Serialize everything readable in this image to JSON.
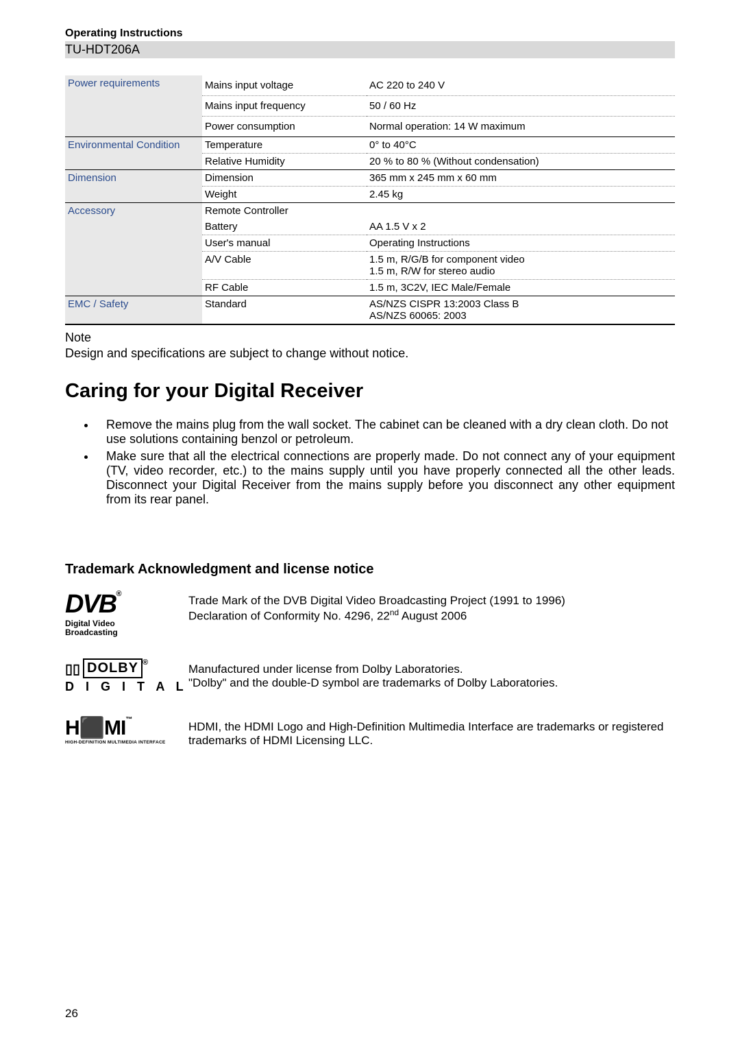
{
  "header": {
    "title": "Operating Instructions",
    "model": "TU-HDT206A"
  },
  "specs": [
    {
      "category": "Power requirements",
      "rows": [
        {
          "param": "Mains input voltage",
          "value": "AC 220 to 240 V"
        },
        {
          "param": "Mains input frequency",
          "value": "50 / 60 Hz"
        },
        {
          "param": "Power consumption",
          "value": "Normal operation: 14 W maximum"
        }
      ]
    },
    {
      "category": "Environmental Condition",
      "rows": [
        {
          "param": "Temperature",
          "value": "0° to 40°C"
        },
        {
          "param": "Relative Humidity",
          "value": "20 % to 80 % (Without condensation)"
        }
      ]
    },
    {
      "category": "Dimension",
      "rows": [
        {
          "param": "Dimension",
          "value": "365 mm x 245 mm x 60 mm"
        },
        {
          "param": "Weight",
          "value": "2.45  kg"
        }
      ]
    },
    {
      "category": "Accessory",
      "rows": [
        {
          "param": "Remote Controller",
          "value": ""
        },
        {
          "param": "Battery",
          "value": "AA 1.5  V x 2"
        },
        {
          "param": "User's manual",
          "value": "Operating Instructions"
        },
        {
          "param": "A/V Cable",
          "value": "1.5 m, R/G/B for component video\n1.5 m, R/W for stereo audio"
        },
        {
          "param": "RF Cable",
          "value": "1.5 m, 3C2V, IEC Male/Female"
        }
      ]
    },
    {
      "category": "EMC / Safety",
      "rows": [
        {
          "param": "Standard",
          "value": "AS/NZS CISPR 13:2003 Class B\nAS/NZS 60065: 2003"
        }
      ]
    }
  ],
  "note": {
    "label": "Note",
    "text": "Design and specifications are subject to change without notice."
  },
  "section_title": "Caring for your Digital Receiver",
  "bullets": [
    "Remove the mains plug from the wall socket. The cabinet can be cleaned with a dry clean cloth. Do not use solutions containing benzol or petroleum.",
    "Make sure that all the electrical connections are properly made. Do not connect any of your equipment (TV, video recorder, etc.) to the mains supply until you have properly connected all the other leads. Disconnect your Digital Receiver from the mains supply before you disconnect any other equipment from its rear panel."
  ],
  "subsection_title": "Trademark Acknowledgment and license notice",
  "trademarks": {
    "dvb": {
      "logo_line1": "Digital Video",
      "logo_line2": "Broadcasting",
      "text_line1": "Trade Mark of the DVB Digital Video Broadcasting Project (1991 to 1996)",
      "text_line2_pre": "Declaration of Conformity No. 4296, 22",
      "text_line2_sup": "nd",
      "text_line2_post": " August 2006"
    },
    "dolby": {
      "logo_text": "DOLBY",
      "logo_sub": "D I G I T A L",
      "text_line1": "Manufactured under license from Dolby Laboratories.",
      "text_line2": "\"Dolby\" and the double-D symbol are trademarks of Dolby Laboratories."
    },
    "hdmi": {
      "logo_text": "HDMI",
      "logo_sub": "HIGH-DEFINITION MULTIMEDIA INTERFACE",
      "text": "HDMI, the HDMI Logo and High-Definition Multimedia Interface are trademarks or registered trademarks of HDMI Licensing LLC."
    }
  },
  "page_number": "26",
  "colors": {
    "header_bg": "#d9d9d9",
    "cat_bg": "#e8e8e8",
    "cat_color": "#2a4b8d"
  }
}
